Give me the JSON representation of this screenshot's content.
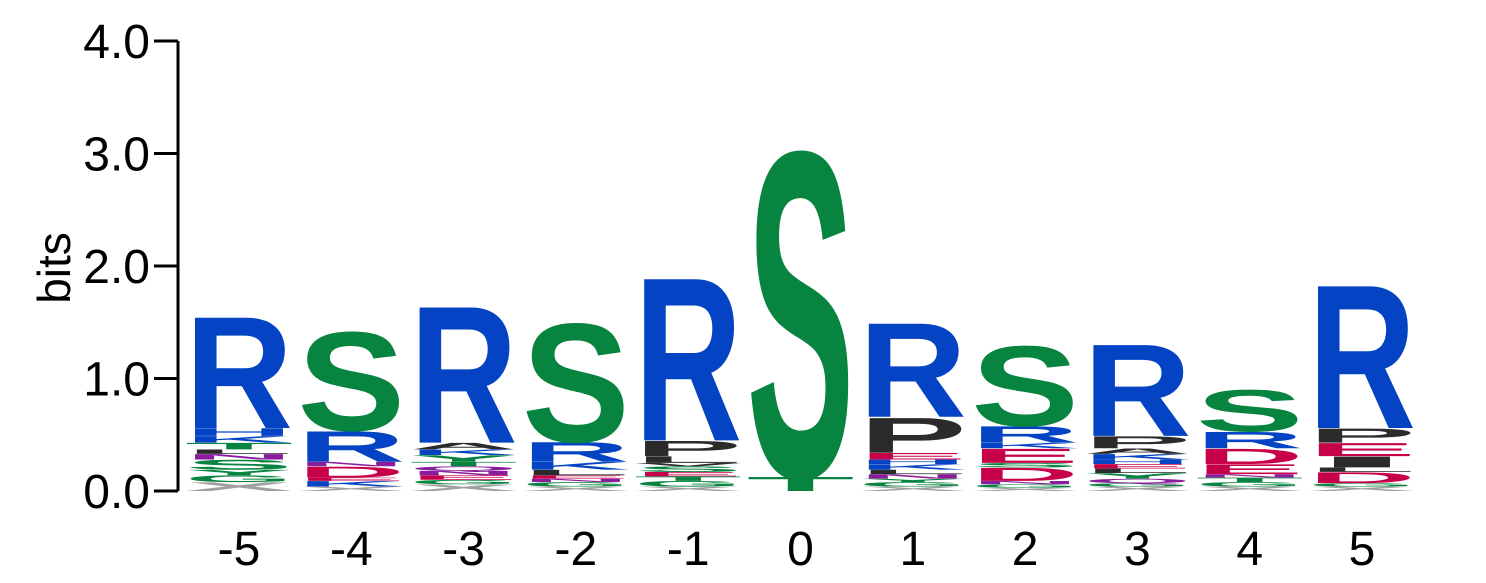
{
  "chart_data": {
    "type": "sequence-logo",
    "ylabel": "bits",
    "ylim": [
      0,
      4
    ],
    "yticks": [
      "0.0",
      "1.0",
      "2.0",
      "3.0",
      "4.0"
    ],
    "positions": [
      "-5",
      "-4",
      "-3",
      "-2",
      "-1",
      "0",
      "1",
      "2",
      "3",
      "4",
      "5"
    ],
    "colors": {
      "R": "#0343c4",
      "K": "#0343c4",
      "H": "#0343c4",
      "S": "#07843f",
      "T": "#07843f",
      "G": "#07843f",
      "Y": "#07843f",
      "P": "#2b2b2b",
      "A": "#2b2b2b",
      "L": "#2b2b2b",
      "V": "#2b2b2b",
      "I": "#2b2b2b",
      "E": "#c7004a",
      "D": "#c7004a",
      "Q": "#8a1d9c",
      "N": "#8a1d9c",
      "X": "#a0a0a0"
    },
    "columns": [
      {
        "position": "-5",
        "stack": [
          {
            "letter": "X",
            "height": 0.08
          },
          {
            "letter": "G",
            "height": 0.06
          },
          {
            "letter": "Y",
            "height": 0.05
          },
          {
            "letter": "S",
            "height": 0.09
          },
          {
            "letter": "N",
            "height": 0.05
          },
          {
            "letter": "L",
            "height": 0.04
          },
          {
            "letter": "T",
            "height": 0.06
          },
          {
            "letter": "K",
            "height": 0.06
          },
          {
            "letter": "H",
            "height": 0.07
          },
          {
            "letter": "R",
            "height": 1.02
          }
        ]
      },
      {
        "position": "-4",
        "stack": [
          {
            "letter": "X",
            "height": 0.04
          },
          {
            "letter": "K",
            "height": 0.05
          },
          {
            "letter": "E",
            "height": 0.03
          },
          {
            "letter": "D",
            "height": 0.1
          },
          {
            "letter": "N",
            "height": 0.04
          },
          {
            "letter": "R",
            "height": 0.28
          },
          {
            "letter": "S",
            "height": 0.9
          }
        ]
      },
      {
        "position": "-3",
        "stack": [
          {
            "letter": "X",
            "height": 0.06
          },
          {
            "letter": "G",
            "height": 0.04
          },
          {
            "letter": "E",
            "height": 0.04
          },
          {
            "letter": "N",
            "height": 0.04
          },
          {
            "letter": "Q",
            "height": 0.04
          },
          {
            "letter": "T",
            "height": 0.04
          },
          {
            "letter": "Y",
            "height": 0.06
          },
          {
            "letter": "K",
            "height": 0.05
          },
          {
            "letter": "A",
            "height": 0.06
          },
          {
            "letter": "R",
            "height": 1.25
          }
        ]
      },
      {
        "position": "-2",
        "stack": [
          {
            "letter": "X",
            "height": 0.04
          },
          {
            "letter": "G",
            "height": 0.04
          },
          {
            "letter": "N",
            "height": 0.03
          },
          {
            "letter": "E",
            "height": 0.03
          },
          {
            "letter": "L",
            "height": 0.05
          },
          {
            "letter": "K",
            "height": 0.07
          },
          {
            "letter": "R",
            "height": 0.18
          },
          {
            "letter": "S",
            "height": 1.08
          }
        ]
      },
      {
        "position": "-1",
        "stack": [
          {
            "letter": "X",
            "height": 0.04
          },
          {
            "letter": "G",
            "height": 0.05
          },
          {
            "letter": "T",
            "height": 0.04
          },
          {
            "letter": "E",
            "height": 0.04
          },
          {
            "letter": "S",
            "height": 0.05
          },
          {
            "letter": "V",
            "height": 0.03
          },
          {
            "letter": "L",
            "height": 0.06
          },
          {
            "letter": "P",
            "height": 0.14
          },
          {
            "letter": "R",
            "height": 1.49
          }
        ]
      },
      {
        "position": "0",
        "stack": [
          {
            "letter": "T",
            "height": 0.13
          },
          {
            "letter": "S",
            "height": 2.97
          }
        ]
      },
      {
        "position": "1",
        "stack": [
          {
            "letter": "X",
            "height": 0.04
          },
          {
            "letter": "G",
            "height": 0.04
          },
          {
            "letter": "Y",
            "height": 0.03
          },
          {
            "letter": "N",
            "height": 0.04
          },
          {
            "letter": "L",
            "height": 0.04
          },
          {
            "letter": "K",
            "height": 0.05
          },
          {
            "letter": "H",
            "height": 0.04
          },
          {
            "letter": "E",
            "height": 0.06
          },
          {
            "letter": "P",
            "height": 0.32
          },
          {
            "letter": "R",
            "height": 0.86
          }
        ]
      },
      {
        "position": "2",
        "stack": [
          {
            "letter": "X",
            "height": 0.03
          },
          {
            "letter": "G",
            "height": 0.03
          },
          {
            "letter": "N",
            "height": 0.03
          },
          {
            "letter": "D",
            "height": 0.12
          },
          {
            "letter": "S",
            "height": 0.04
          },
          {
            "letter": "E",
            "height": 0.13
          },
          {
            "letter": "K",
            "height": 0.05
          },
          {
            "letter": "R",
            "height": 0.15
          },
          {
            "letter": "S",
            "height": 0.73
          }
        ]
      },
      {
        "position": "3",
        "stack": [
          {
            "letter": "X",
            "height": 0.04
          },
          {
            "letter": "G",
            "height": 0.03
          },
          {
            "letter": "Q",
            "height": 0.04
          },
          {
            "letter": "Y",
            "height": 0.05
          },
          {
            "letter": "L",
            "height": 0.04
          },
          {
            "letter": "E",
            "height": 0.04
          },
          {
            "letter": "H",
            "height": 0.04
          },
          {
            "letter": "K",
            "height": 0.05
          },
          {
            "letter": "A",
            "height": 0.05
          },
          {
            "letter": "P",
            "height": 0.11
          },
          {
            "letter": "R",
            "height": 0.84
          }
        ]
      },
      {
        "position": "4",
        "stack": [
          {
            "letter": "X",
            "height": 0.04
          },
          {
            "letter": "G",
            "height": 0.04
          },
          {
            "letter": "T",
            "height": 0.04
          },
          {
            "letter": "N",
            "height": 0.03
          },
          {
            "letter": "E",
            "height": 0.09
          },
          {
            "letter": "D",
            "height": 0.14
          },
          {
            "letter": "R",
            "height": 0.15
          },
          {
            "letter": "S",
            "height": 0.38
          }
        ]
      },
      {
        "position": "5",
        "stack": [
          {
            "letter": "X",
            "height": 0.04
          },
          {
            "letter": "G",
            "height": 0.03
          },
          {
            "letter": "D",
            "height": 0.1
          },
          {
            "letter": "L",
            "height": 0.04
          },
          {
            "letter": "I",
            "height": 0.1
          },
          {
            "letter": "E",
            "height": 0.12
          },
          {
            "letter": "P",
            "height": 0.13
          },
          {
            "letter": "R",
            "height": 1.31
          }
        ]
      }
    ]
  }
}
